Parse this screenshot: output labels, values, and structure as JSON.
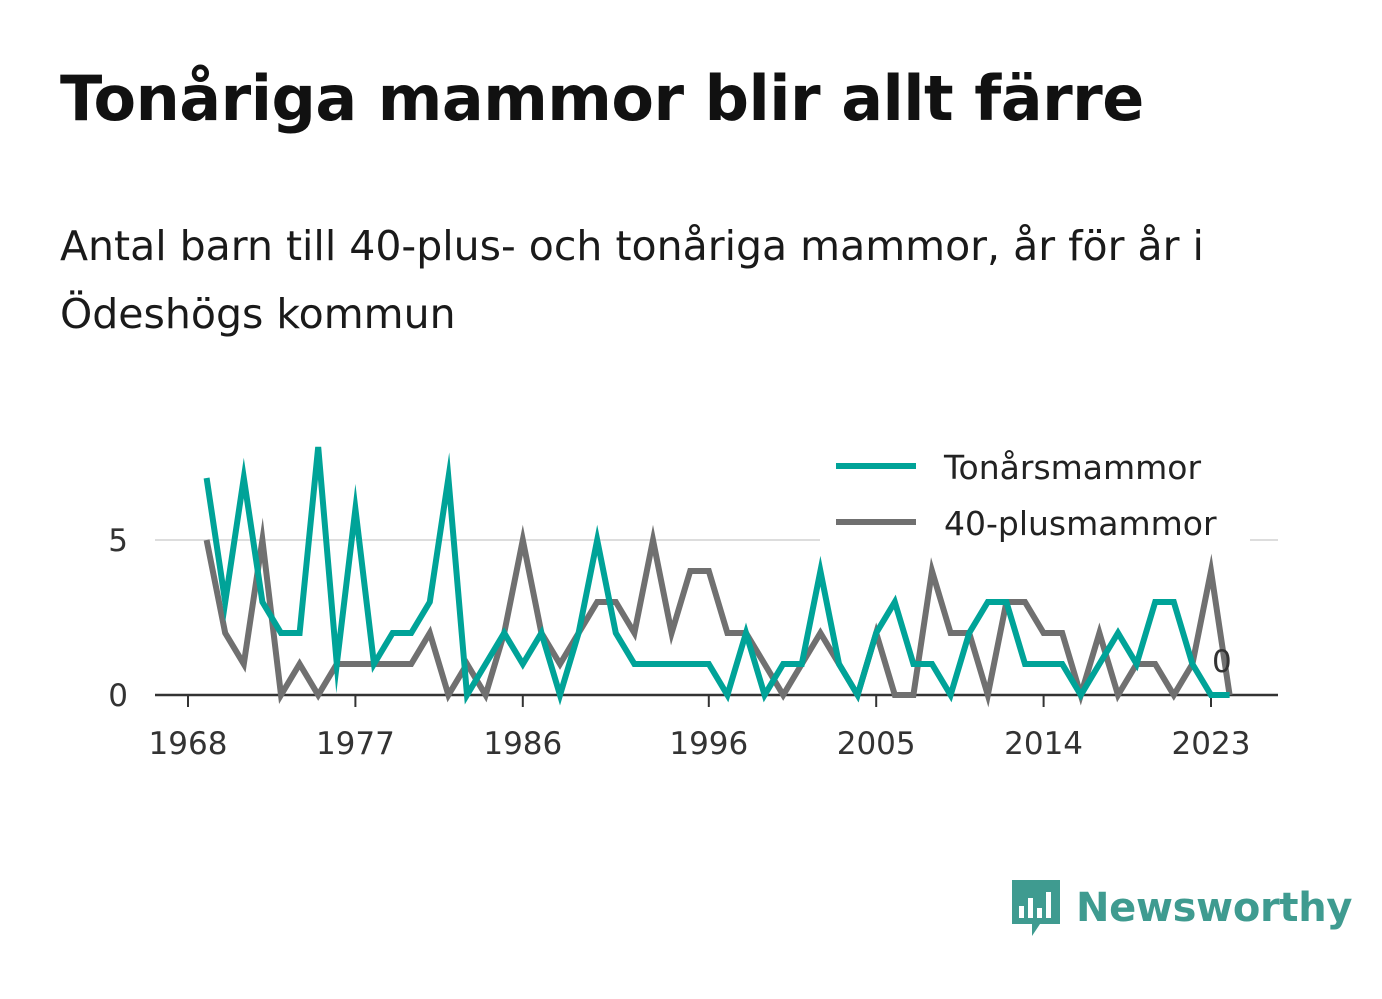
{
  "header": {
    "title": "Tonåriga mammor blir allt färre",
    "subtitle": "Antal barn till 40-plus- och tonåriga mammor, år för år i Ödeshögs kommun"
  },
  "brand": {
    "name": "Newsworthy",
    "icon": "newsworthy-logo-icon",
    "color": "#3f9b90"
  },
  "chart_data": {
    "type": "line",
    "ylim": [
      0,
      8
    ],
    "xlim": [
      1967,
      2027
    ],
    "y_ticks": [
      0,
      5
    ],
    "x_ticks": [
      1968,
      1977,
      1986,
      1996,
      2005,
      2014,
      2023
    ],
    "grid": "horizontal",
    "legend_position": "top-right",
    "end_label": "0",
    "x": [
      1969,
      1970,
      1971,
      1972,
      1973,
      1974,
      1975,
      1976,
      1977,
      1978,
      1979,
      1980,
      1981,
      1982,
      1983,
      1984,
      1985,
      1986,
      1987,
      1988,
      1989,
      1990,
      1991,
      1992,
      1993,
      1994,
      1995,
      1996,
      1997,
      1998,
      1999,
      2000,
      2001,
      2002,
      2003,
      2004,
      2005,
      2006,
      2007,
      2008,
      2009,
      2010,
      2011,
      2012,
      2013,
      2014,
      2015,
      2016,
      2017,
      2018,
      2019,
      2020,
      2021,
      2022,
      2023,
      2024
    ],
    "series": [
      {
        "name": "Tonårsmammor",
        "color": "#00a398",
        "values": [
          7,
          3,
          7,
          3,
          2,
          2,
          8,
          1,
          6,
          1,
          2,
          2,
          3,
          7,
          0,
          1,
          2,
          1,
          2,
          0,
          2,
          5,
          2,
          1,
          1,
          1,
          1,
          1,
          0,
          2,
          0,
          1,
          1,
          4,
          1,
          0,
          2,
          3,
          1,
          1,
          0,
          2,
          3,
          3,
          1,
          1,
          1,
          0,
          1,
          2,
          1,
          3,
          3,
          1,
          0,
          0
        ]
      },
      {
        "name": "40-plusmammor",
        "color": "#707070",
        "values": [
          5,
          2,
          1,
          5,
          0,
          1,
          0,
          1,
          1,
          1,
          1,
          1,
          2,
          0,
          1,
          0,
          2,
          5,
          2,
          1,
          2,
          3,
          3,
          2,
          5,
          2,
          4,
          4,
          2,
          2,
          1,
          0,
          1,
          2,
          1,
          0,
          2,
          0,
          0,
          4,
          2,
          2,
          0,
          3,
          3,
          2,
          2,
          0,
          2,
          0,
          1,
          1,
          0,
          1,
          4,
          0
        ]
      }
    ]
  }
}
